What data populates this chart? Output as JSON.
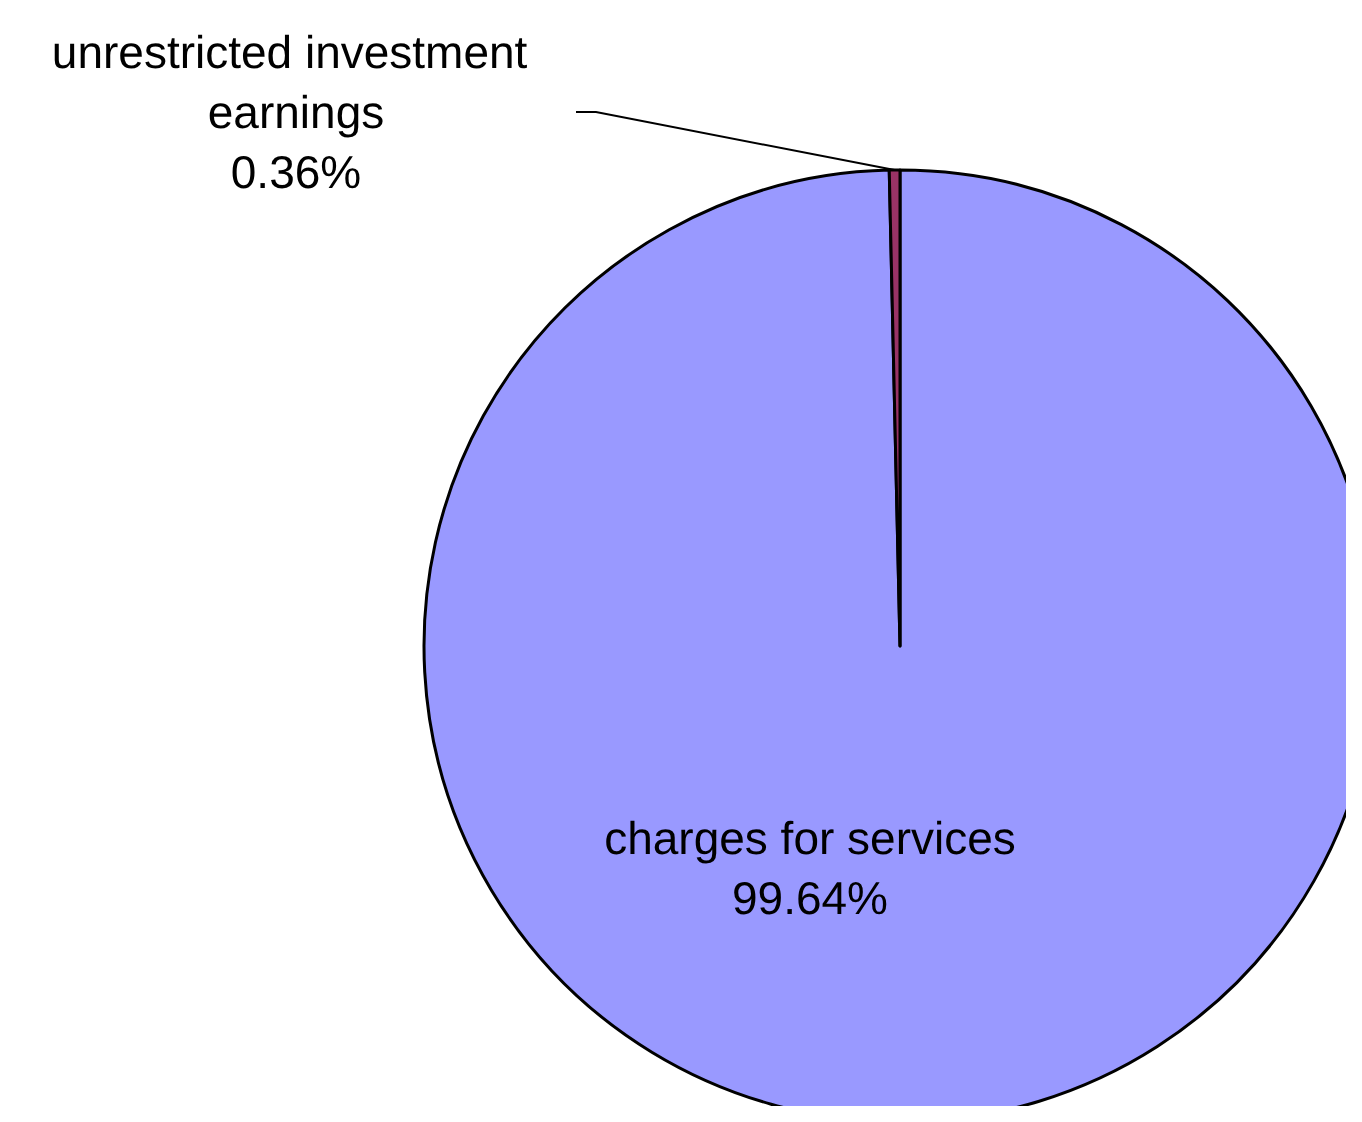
{
  "chart_data": {
    "type": "pie",
    "categories": [
      "charges for services",
      "unrestricted investment earnings"
    ],
    "values": [
      99.64,
      0.36
    ],
    "value_labels": [
      "99.64%",
      "0.36%"
    ],
    "colors": [
      "#9999ff",
      "#993366"
    ],
    "legend": false
  }
}
